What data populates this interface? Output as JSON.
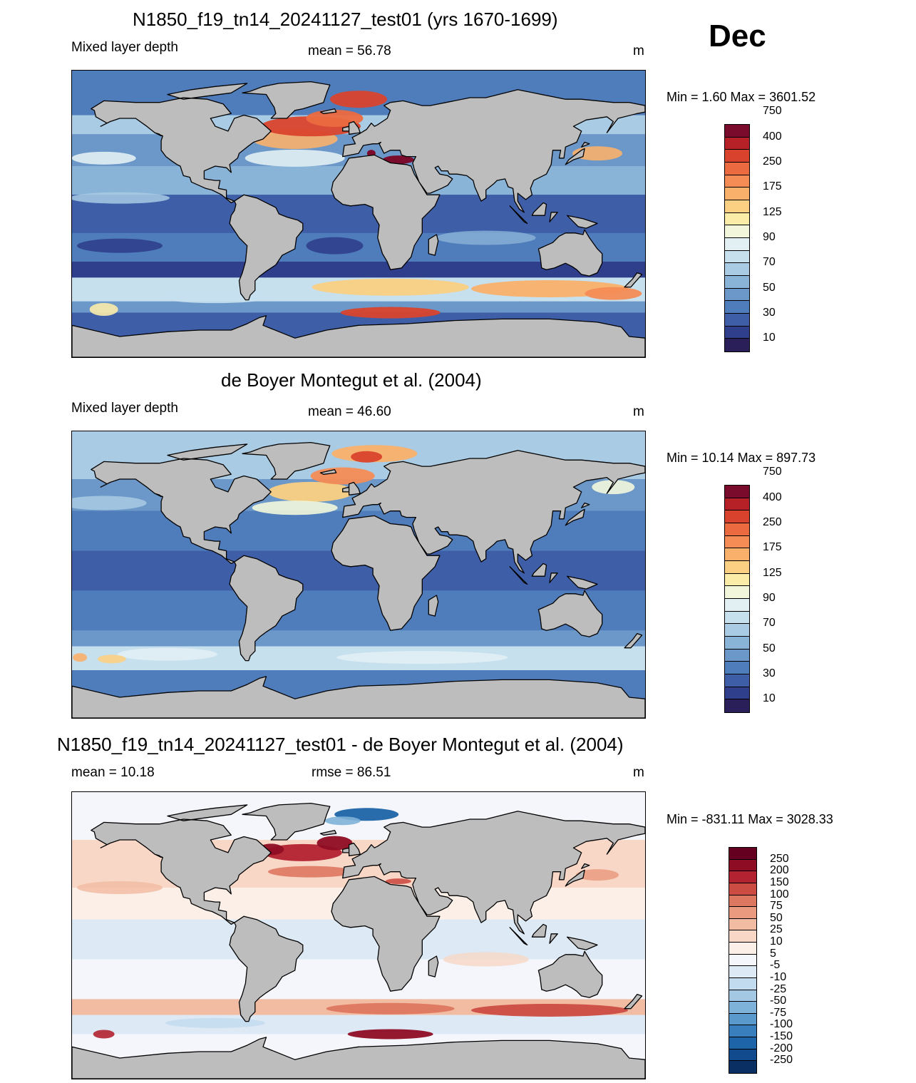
{
  "month": "Dec",
  "panels": [
    {
      "title": "N1850_f19_tn14_20241127_test01 (yrs 1670-1699)",
      "left_label": "Mixed layer depth",
      "center_label": "mean =  56.78",
      "units": "m",
      "minmax": "Min =    1.60 Max = 3601.52",
      "field": "model"
    },
    {
      "title": "de Boyer Montegut et al. (2004)",
      "left_label": "Mixed layer depth",
      "center_label": "mean =  46.60",
      "units": "m",
      "minmax": "Min =  10.14 Max = 897.73",
      "field": "obs"
    },
    {
      "title": "N1850_f19_tn14_20241127_test01 - de Boyer Montegut et al. (2004)",
      "left_label": "mean =  10.18",
      "center_label": "rmse =  86.51",
      "units": "m",
      "minmax": "Min = -831.11 Max = 3028.33",
      "field": "diff"
    }
  ],
  "colorbars": {
    "seq": {
      "colors": [
        "#2b1f5a",
        "#2f3f8c",
        "#3e5fa8",
        "#4f7cba",
        "#6b98c9",
        "#8ab3d8",
        "#a9cbe4",
        "#c7e0ee",
        "#e2f0f4",
        "#f2f7dc",
        "#fbeca8",
        "#fbd083",
        "#f9b06a",
        "#f58c55",
        "#ec6a3f",
        "#d9432d",
        "#b52126",
        "#7a0b2c"
      ],
      "labels": [
        "10",
        "30",
        "50",
        "70",
        "90",
        "125",
        "175",
        "250",
        "400",
        "750"
      ]
    },
    "div": {
      "colors": [
        "#0a2f63",
        "#124a8e",
        "#1e64a8",
        "#3a7fbd",
        "#5a99cb",
        "#7eb2d8",
        "#a3c8e4",
        "#c3dbee",
        "#dde9f4",
        "#f4f6fb",
        "#fbefe8",
        "#f8d7c6",
        "#f2bca3",
        "#ea9b7f",
        "#de7760",
        "#cc4c44",
        "#b32230",
        "#8e0d24",
        "#660020"
      ],
      "labels": [
        "-250",
        "-200",
        "-150",
        "-100",
        "-75",
        "-50",
        "-25",
        "-10",
        "-5",
        "5",
        "10",
        "25",
        "50",
        "75",
        "100",
        "150",
        "200",
        "250"
      ]
    }
  }
}
